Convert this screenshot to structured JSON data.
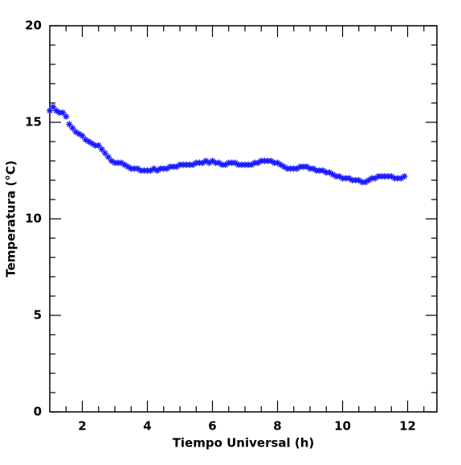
{
  "chart_data": {
    "type": "scatter",
    "marker": "asterisk",
    "color": "#1a1aff",
    "xlabel": "Tiempo Universal (h)",
    "ylabel": "Temperatura (°C)",
    "xlim": [
      1,
      12.9
    ],
    "ylim": [
      0,
      20
    ],
    "xticks": [
      2,
      4,
      6,
      8,
      10,
      12
    ],
    "yticks": [
      0,
      5,
      10,
      15,
      20
    ],
    "xminorticks": [
      1.5,
      2.5,
      3,
      3.5,
      4.5,
      5,
      5.5,
      6.5,
      7,
      7.5,
      8.5,
      9,
      9.5,
      10.5,
      11,
      11.5,
      12.5
    ],
    "yminorticks": [
      1,
      2,
      3,
      4,
      6,
      7,
      8,
      9,
      11,
      12,
      13,
      14,
      16,
      17,
      18,
      19
    ],
    "x": [
      1.0,
      1.1,
      1.2,
      1.3,
      1.4,
      1.5,
      1.6,
      1.7,
      1.8,
      1.9,
      2.0,
      2.1,
      2.2,
      2.3,
      2.4,
      2.5,
      2.6,
      2.7,
      2.8,
      2.9,
      3.0,
      3.1,
      3.2,
      3.3,
      3.4,
      3.5,
      3.6,
      3.7,
      3.8,
      3.9,
      4.0,
      4.1,
      4.2,
      4.3,
      4.4,
      4.5,
      4.6,
      4.7,
      4.8,
      4.9,
      5.0,
      5.1,
      5.2,
      5.3,
      5.4,
      5.5,
      5.6,
      5.7,
      5.8,
      5.9,
      6.0,
      6.1,
      6.2,
      6.3,
      6.4,
      6.5,
      6.6,
      6.7,
      6.8,
      6.9,
      7.0,
      7.1,
      7.2,
      7.3,
      7.4,
      7.5,
      7.6,
      7.7,
      7.8,
      7.9,
      8.0,
      8.1,
      8.2,
      8.3,
      8.4,
      8.5,
      8.6,
      8.7,
      8.8,
      8.9,
      9.0,
      9.1,
      9.2,
      9.3,
      9.4,
      9.5,
      9.6,
      9.7,
      9.8,
      9.9,
      10.0,
      10.1,
      10.2,
      10.3,
      10.4,
      10.5,
      10.6,
      10.7,
      10.8,
      10.9,
      11.0,
      11.1,
      11.2,
      11.3,
      11.4,
      11.5,
      11.6,
      11.7,
      11.8,
      11.9
    ],
    "values": [
      15.6,
      15.8,
      15.6,
      15.5,
      15.5,
      15.3,
      14.9,
      14.7,
      14.5,
      14.4,
      14.3,
      14.1,
      14.0,
      13.9,
      13.8,
      13.8,
      13.6,
      13.4,
      13.2,
      13.0,
      12.9,
      12.9,
      12.9,
      12.8,
      12.7,
      12.6,
      12.6,
      12.6,
      12.5,
      12.5,
      12.5,
      12.5,
      12.6,
      12.5,
      12.6,
      12.6,
      12.6,
      12.7,
      12.7,
      12.7,
      12.8,
      12.8,
      12.8,
      12.8,
      12.8,
      12.9,
      12.9,
      12.9,
      13.0,
      12.9,
      13.0,
      12.9,
      12.9,
      12.8,
      12.8,
      12.9,
      12.9,
      12.9,
      12.8,
      12.8,
      12.8,
      12.8,
      12.8,
      12.9,
      12.9,
      13.0,
      13.0,
      13.0,
      13.0,
      12.9,
      12.9,
      12.8,
      12.7,
      12.6,
      12.6,
      12.6,
      12.6,
      12.7,
      12.7,
      12.7,
      12.6,
      12.6,
      12.5,
      12.5,
      12.5,
      12.4,
      12.4,
      12.3,
      12.2,
      12.2,
      12.1,
      12.1,
      12.1,
      12.0,
      12.0,
      12.0,
      11.9,
      11.9,
      12.0,
      12.1,
      12.1,
      12.2,
      12.2,
      12.2,
      12.2,
      12.2,
      12.1,
      12.1,
      12.1,
      12.2
    ]
  }
}
